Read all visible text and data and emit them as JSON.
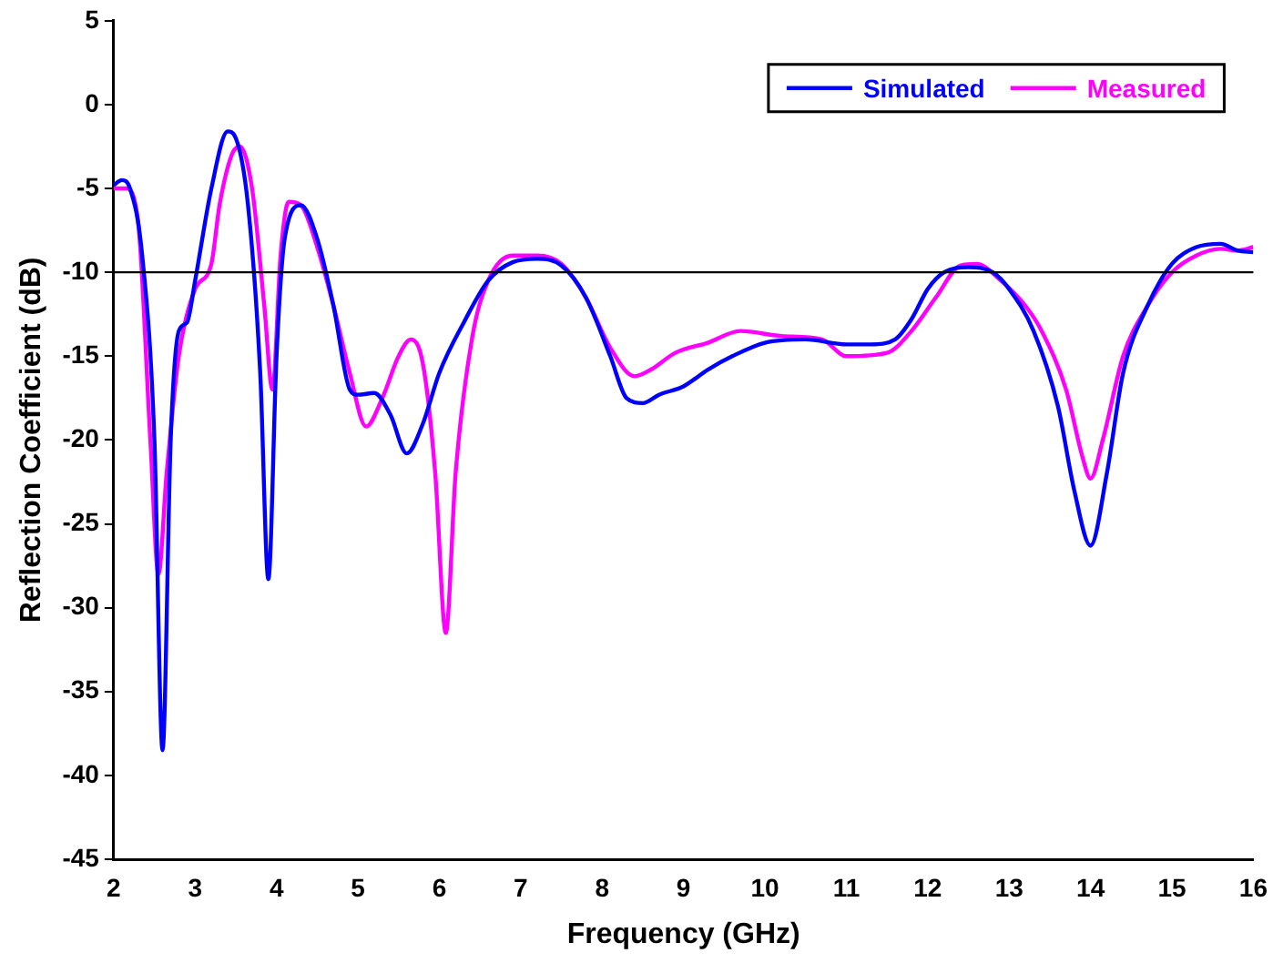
{
  "chart_data": {
    "type": "line",
    "xlabel": "Frequency (GHz)",
    "ylabel": "Reflection Coefficient (dB)",
    "xlim": [
      2,
      16
    ],
    "xticks": [
      2,
      3,
      4,
      5,
      6,
      7,
      8,
      9,
      10,
      11,
      12,
      13,
      14,
      15,
      16
    ],
    "ylim": [
      -45,
      5
    ],
    "yticks": [
      -45,
      -40,
      -35,
      -30,
      -25,
      -20,
      -15,
      -10,
      -5,
      0,
      5
    ],
    "grid": false,
    "legend": "top right",
    "marker": "none",
    "line_style": "solid",
    "ref_lines": [
      {
        "axis": "y",
        "value": -10,
        "color": "#000000"
      }
    ],
    "series": [
      {
        "name": "Simulated",
        "color": "#0000ff",
        "x": [
          2.0,
          2.1,
          2.2,
          2.35,
          2.5,
          2.6,
          2.7,
          2.8,
          2.9,
          3.0,
          3.2,
          3.4,
          3.5,
          3.65,
          3.8,
          3.9,
          4.0,
          4.1,
          4.3,
          4.5,
          4.7,
          4.9,
          5.0,
          5.2,
          5.4,
          5.6,
          5.8,
          6.0,
          6.3,
          6.6,
          6.9,
          7.2,
          7.5,
          7.8,
          8.1,
          8.3,
          8.5,
          8.7,
          9.0,
          9.3,
          9.6,
          10.0,
          10.5,
          11.0,
          11.3,
          11.6,
          11.8,
          12.0,
          12.2,
          12.5,
          12.8,
          13.0,
          13.3,
          13.6,
          13.8,
          14.0,
          14.2,
          14.4,
          14.7,
          15.0,
          15.3,
          15.6,
          15.8,
          16.0
        ],
        "values": [
          -4.8,
          -4.5,
          -5,
          -9,
          -20,
          -38.5,
          -20,
          -13.5,
          -13,
          -10.5,
          -5,
          -1.6,
          -2,
          -6,
          -16,
          -28.3,
          -15,
          -8,
          -6,
          -8,
          -12,
          -17,
          -17.3,
          -17.2,
          -18.5,
          -20.8,
          -19,
          -16,
          -13,
          -10.5,
          -9.4,
          -9.2,
          -9.6,
          -11.5,
          -15,
          -17.5,
          -17.8,
          -17.3,
          -16.8,
          -15.8,
          -15,
          -14.2,
          -14,
          -14.3,
          -14.3,
          -14,
          -12.8,
          -11,
          -10,
          -9.7,
          -10,
          -11,
          -13.5,
          -18,
          -23,
          -26.3,
          -22,
          -16,
          -12,
          -9.5,
          -8.5,
          -8.3,
          -8.7,
          -8.8
        ]
      },
      {
        "name": "Measured",
        "color": "#ff00ff",
        "x": [
          2.0,
          2.15,
          2.3,
          2.45,
          2.55,
          2.65,
          2.8,
          3.0,
          3.2,
          3.3,
          3.45,
          3.55,
          3.7,
          3.85,
          3.95,
          4.05,
          4.15,
          4.3,
          4.5,
          4.7,
          4.9,
          5.1,
          5.3,
          5.5,
          5.65,
          5.8,
          5.95,
          6.08,
          6.2,
          6.4,
          6.6,
          6.9,
          7.2,
          7.5,
          7.8,
          8.1,
          8.4,
          8.6,
          8.9,
          9.3,
          9.7,
          10.2,
          10.7,
          11.0,
          11.5,
          11.8,
          12.1,
          12.4,
          12.6,
          12.9,
          13.2,
          13.4,
          13.7,
          13.9,
          14.0,
          14.15,
          14.4,
          14.7,
          15.0,
          15.3,
          15.6,
          15.8,
          16.0
        ],
        "values": [
          -5,
          -5,
          -7,
          -20,
          -28,
          -22,
          -15,
          -11,
          -9.5,
          -6,
          -3,
          -2.5,
          -5,
          -12,
          -17,
          -9,
          -5.8,
          -6,
          -8.5,
          -12,
          -16,
          -19.2,
          -17.5,
          -15,
          -14,
          -15.5,
          -22,
          -31.5,
          -22,
          -14,
          -10.5,
          -9,
          -9,
          -9.5,
          -11.5,
          -14.5,
          -16.2,
          -15.8,
          -14.8,
          -14.2,
          -13.5,
          -13.8,
          -14,
          -15,
          -14.8,
          -13.5,
          -11.5,
          -9.6,
          -9.5,
          -10.5,
          -12,
          -13.5,
          -17,
          -21,
          -22.3,
          -20,
          -15,
          -12,
          -10,
          -9,
          -8.6,
          -8.7,
          -8.5
        ]
      }
    ]
  }
}
